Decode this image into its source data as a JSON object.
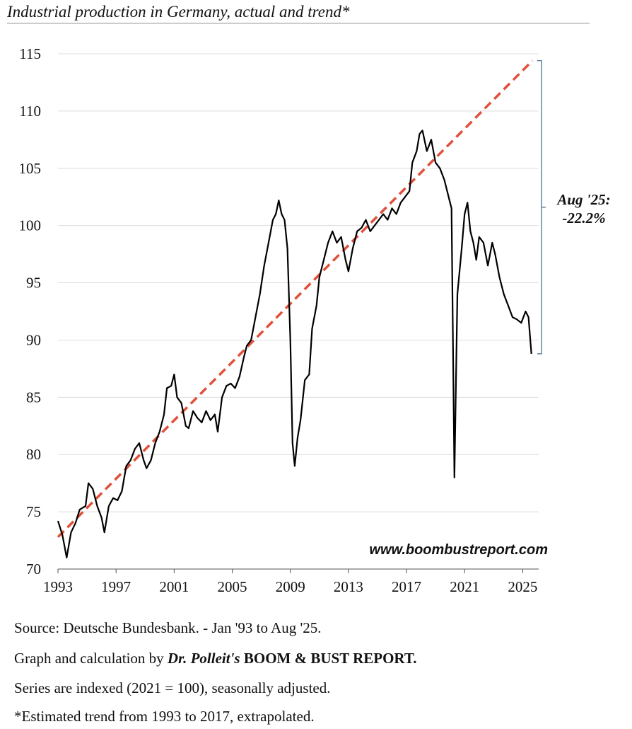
{
  "chart_data": {
    "type": "line",
    "title": "Industrial production in Germany, actual and trend*",
    "x": [
      1993.0,
      1993.3,
      1993.6,
      1993.9,
      1994.2,
      1994.5,
      1994.9,
      1995.1,
      1995.4,
      1995.7,
      1996.0,
      1996.2,
      1996.5,
      1996.8,
      1997.1,
      1997.4,
      1997.7,
      1998.0,
      1998.3,
      1998.6,
      1998.9,
      1999.1,
      1999.4,
      1999.7,
      2000.0,
      2000.3,
      2000.5,
      2000.8,
      2001.0,
      2001.2,
      2001.5,
      2001.8,
      2002.0,
      2002.3,
      2002.6,
      2002.9,
      2003.2,
      2003.5,
      2003.8,
      2004.0,
      2004.3,
      2004.6,
      2004.9,
      2005.2,
      2005.5,
      2005.8,
      2006.0,
      2006.3,
      2006.6,
      2006.9,
      2007.2,
      2007.5,
      2007.8,
      2008.0,
      2008.2,
      2008.4,
      2008.6,
      2008.8,
      2009.0,
      2009.15,
      2009.3,
      2009.5,
      2009.7,
      2010.0,
      2010.3,
      2010.5,
      2010.8,
      2011.0,
      2011.3,
      2011.6,
      2011.9,
      2012.2,
      2012.5,
      2012.8,
      2013.0,
      2013.3,
      2013.6,
      2013.9,
      2014.2,
      2014.5,
      2014.8,
      2015.1,
      2015.4,
      2015.7,
      2016.0,
      2016.3,
      2016.6,
      2016.9,
      2017.2,
      2017.4,
      2017.7,
      2017.9,
      2018.1,
      2018.4,
      2018.7,
      2019.0,
      2019.3,
      2019.6,
      2019.9,
      2020.1,
      2020.3,
      2020.5,
      2020.8,
      2021.0,
      2021.2,
      2021.4,
      2021.6,
      2021.8,
      2022.0,
      2022.3,
      2022.6,
      2022.9,
      2023.1,
      2023.4,
      2023.7,
      2024.0,
      2024.3,
      2024.6,
      2024.9,
      2025.2,
      2025.4,
      2025.6
    ],
    "series": [
      {
        "name": "Industrial production",
        "color": "#000000",
        "values": [
          74.2,
          73.0,
          71.0,
          73.2,
          74.0,
          75.2,
          75.5,
          77.5,
          77.0,
          75.5,
          74.5,
          73.2,
          75.5,
          76.2,
          76.0,
          76.8,
          79.0,
          79.5,
          80.5,
          81.0,
          79.5,
          78.8,
          79.5,
          81.0,
          82.0,
          83.5,
          85.8,
          86.0,
          87.0,
          85.0,
          84.5,
          82.5,
          82.3,
          83.8,
          83.2,
          82.8,
          83.8,
          83.0,
          83.5,
          82.0,
          85.0,
          86.0,
          86.2,
          85.8,
          86.8,
          88.5,
          89.5,
          90.0,
          92.0,
          94.0,
          96.5,
          98.5,
          100.5,
          101.0,
          102.2,
          101.0,
          100.5,
          98.0,
          90.0,
          81.0,
          79.0,
          81.5,
          83.0,
          86.5,
          87.0,
          91.0,
          93.0,
          95.5,
          97.0,
          98.5,
          99.5,
          98.5,
          99.0,
          97.0,
          96.0,
          98.0,
          99.5,
          99.8,
          100.5,
          99.5,
          100.0,
          100.5,
          101.0,
          100.5,
          101.5,
          101.0,
          102.0,
          102.5,
          103.0,
          105.5,
          106.5,
          108.0,
          108.3,
          106.5,
          107.5,
          105.5,
          105.0,
          104.0,
          102.5,
          101.5,
          78.0,
          94.0,
          98.0,
          101.0,
          102.0,
          99.5,
          98.5,
          97.0,
          99.0,
          98.5,
          96.5,
          98.5,
          97.5,
          95.5,
          94.0,
          93.0,
          92.0,
          91.8,
          91.5,
          92.5,
          92.0,
          88.8
        ]
      }
    ],
    "trend": {
      "color": "#e0503a",
      "x": [
        1993.0,
        2025.67
      ],
      "values": [
        72.8,
        114.4
      ]
    },
    "annotation": [
      "Aug '25:",
      "-22.2%"
    ],
    "watermark": "www.boombustreport.com",
    "xlim": [
      1993,
      2026.1
    ],
    "xticks": [
      1993,
      1997,
      2001,
      2005,
      2009,
      2013,
      2017,
      2021,
      2025
    ],
    "ylim": [
      70,
      115
    ],
    "yticks": [
      70,
      75,
      80,
      85,
      90,
      95,
      100,
      105,
      110,
      115
    ],
    "grid": true
  },
  "footnotes": [
    "Source: Deutsche Bundesbank. - Jan '93 to Aug '25.",
    [
      "Graph and calculation by ",
      "Dr. Polleit's",
      " BOOM & BUST REPORT."
    ],
    "Series are indexed (2021 = 100), seasonally adjusted.",
    "*Estimated trend from 1993 to 2017, extrapolated."
  ]
}
